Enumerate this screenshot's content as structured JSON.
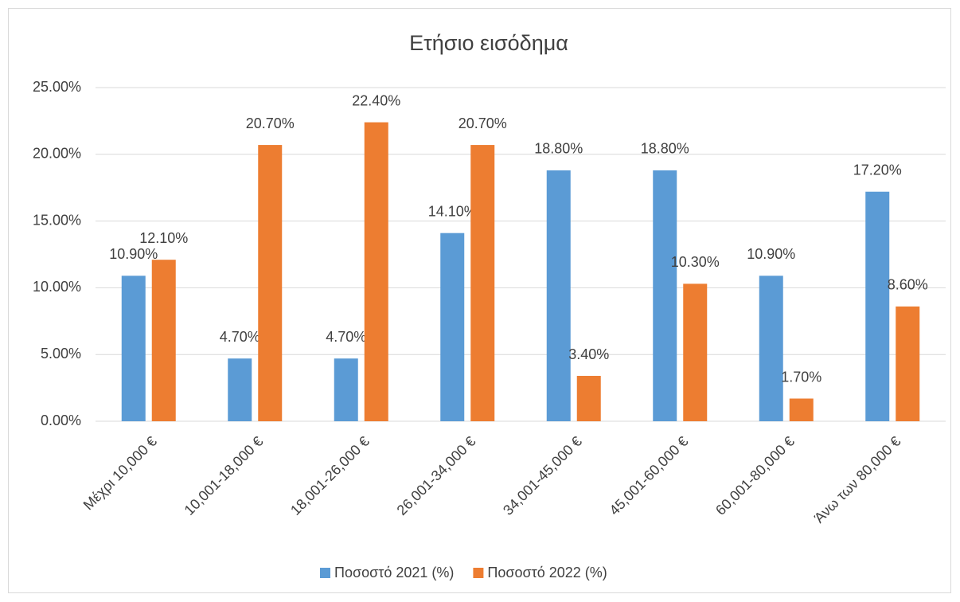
{
  "chart_data": {
    "type": "bar",
    "title": "Ετήσιο εισόδημα",
    "categories": [
      "Μέχρι 10,000 €",
      "10,001-18,000 €",
      "18,001-26,000 €",
      "26,001-34,000 €",
      "34,001-45,000 €",
      "45,001-60,000 €",
      "60,001-80,000 €",
      "Άνω των 80,000 €"
    ],
    "series": [
      {
        "name": "Ποσοστό 2021 (%)",
        "color": "#5b9bd5",
        "values": [
          10.9,
          4.7,
          4.7,
          14.1,
          18.8,
          18.8,
          10.9,
          17.2
        ],
        "value_labels": [
          "10.90%",
          "4.70%",
          "4.70%",
          "14.10%",
          "18.80%",
          "18.80%",
          "10.90%",
          "17.20%"
        ]
      },
      {
        "name": "Ποσοστό 2022 (%)",
        "color": "#ed7d31",
        "values": [
          12.1,
          20.7,
          22.4,
          20.7,
          3.4,
          10.3,
          1.7,
          8.6
        ],
        "value_labels": [
          "12.10%",
          "20.70%",
          "22.40%",
          "20.70%",
          "3.40%",
          "10.30%",
          "1.70%",
          "8.60%"
        ]
      }
    ],
    "ylim": [
      0,
      25
    ],
    "yticks": [
      {
        "value": 0,
        "label": "0.00%"
      },
      {
        "value": 5,
        "label": "5.00%"
      },
      {
        "value": 10,
        "label": "10.00%"
      },
      {
        "value": 15,
        "label": "15.00%"
      },
      {
        "value": 20,
        "label": "20.00%"
      },
      {
        "value": 25,
        "label": "25.00%"
      }
    ],
    "grid": true,
    "legend": "bottom"
  }
}
